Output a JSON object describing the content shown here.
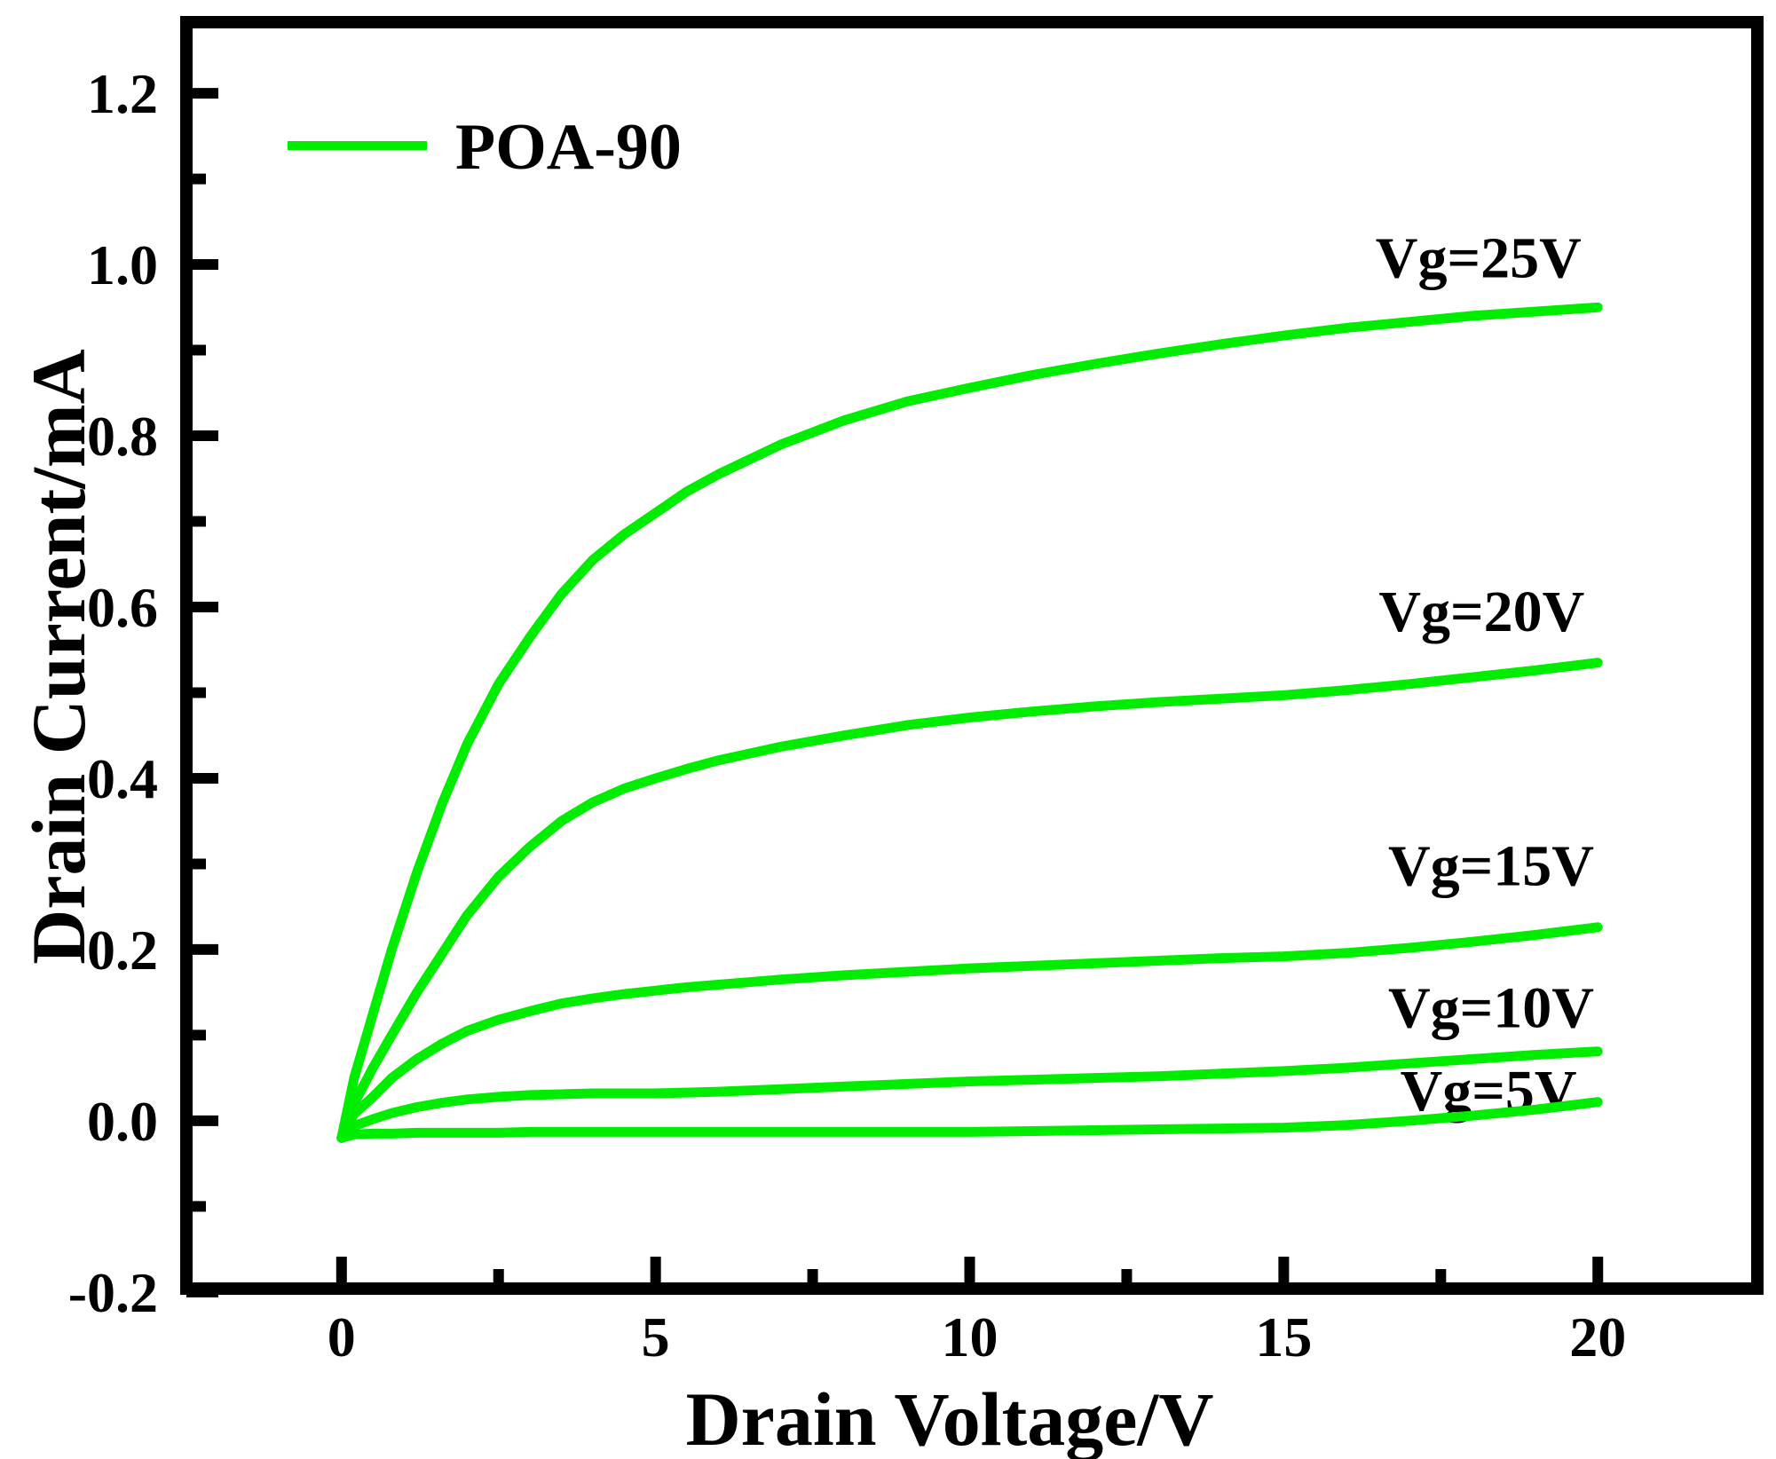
{
  "colors": {
    "curve_green": "#00ED00",
    "axis_black": "#000000",
    "background": "#ffffff"
  },
  "chart_data": {
    "type": "line",
    "title": "",
    "xlabel": "Drain Voltage/V",
    "ylabel": "Drain Current/mA",
    "xlim": [
      -2.47,
      22.54
    ],
    "ylim": [
      -0.196,
      1.283
    ],
    "grid": false,
    "legend": {
      "label": "POA-90",
      "position": "upper-left"
    },
    "line_color": "#00ED00",
    "x_ticks": {
      "values": [
        0,
        5,
        10,
        15,
        20
      ],
      "labels": [
        "0",
        "5",
        "10",
        "15",
        "20"
      ],
      "minor": [
        2.5,
        7.5,
        12.5,
        17.5
      ]
    },
    "y_ticks": {
      "values": [
        1.2,
        1.0,
        0.8,
        0.6,
        0.4,
        0.2,
        0.0,
        -0.2
      ],
      "labels": [
        "1.2",
        "1.0",
        "0.8",
        "0.6",
        "0.4",
        "0.2",
        "0.0",
        "-0.2"
      ],
      "minor": [
        1.1,
        0.9,
        0.7,
        0.5,
        0.3,
        0.1,
        -0.1
      ]
    },
    "x": [
      0,
      0.2,
      0.5,
      0.8,
      1.2,
      1.6,
      2,
      2.5,
      3,
      3.5,
      4,
      4.5,
      5,
      5.5,
      6,
      7,
      8,
      9,
      10,
      11,
      12,
      13,
      14,
      15,
      16,
      17,
      18,
      19,
      20
    ],
    "series": [
      {
        "name": "Vg=25V",
        "gate_voltage_V": 25,
        "annotation": {
          "text": "Vg=25V",
          "x": 18.1,
          "y": 1.007
        },
        "y": [
          -0.02,
          0.05,
          0.125,
          0.2,
          0.29,
          0.37,
          0.44,
          0.51,
          0.565,
          0.615,
          0.655,
          0.685,
          0.71,
          0.735,
          0.755,
          0.79,
          0.818,
          0.84,
          0.856,
          0.871,
          0.884,
          0.896,
          0.907,
          0.917,
          0.926,
          0.933,
          0.94,
          0.945,
          0.95
        ]
      },
      {
        "name": "Vg=20V",
        "gate_voltage_V": 20,
        "annotation": {
          "text": "Vg=20V",
          "x": 18.15,
          "y": 0.594
        },
        "y": [
          -0.02,
          0.02,
          0.062,
          0.1,
          0.15,
          0.195,
          0.24,
          0.285,
          0.32,
          0.35,
          0.372,
          0.388,
          0.4,
          0.411,
          0.421,
          0.437,
          0.45,
          0.462,
          0.471,
          0.478,
          0.484,
          0.489,
          0.493,
          0.497,
          0.503,
          0.51,
          0.518,
          0.526,
          0.535
        ]
      },
      {
        "name": "Vg=15V",
        "gate_voltage_V": 15,
        "annotation": {
          "text": "Vg=15V",
          "x": 18.3,
          "y": 0.297
        },
        "y": [
          -0.02,
          0.008,
          0.028,
          0.05,
          0.072,
          0.09,
          0.105,
          0.118,
          0.128,
          0.137,
          0.143,
          0.148,
          0.152,
          0.156,
          0.159,
          0.165,
          0.17,
          0.174,
          0.178,
          0.181,
          0.184,
          0.187,
          0.19,
          0.192,
          0.196,
          0.202,
          0.209,
          0.217,
          0.226
        ]
      },
      {
        "name": "Vg=10V",
        "gate_voltage_V": 10,
        "annotation": {
          "text": "Vg=10V",
          "x": 18.3,
          "y": 0.131
        },
        "y": [
          -0.02,
          -0.006,
          0.002,
          0.009,
          0.016,
          0.021,
          0.025,
          0.028,
          0.03,
          0.031,
          0.032,
          0.032,
          0.032,
          0.033,
          0.034,
          0.037,
          0.04,
          0.043,
          0.046,
          0.048,
          0.05,
          0.052,
          0.055,
          0.058,
          0.062,
          0.067,
          0.072,
          0.077,
          0.081
        ]
      },
      {
        "name": "Vg=5V",
        "gate_voltage_V": 5,
        "annotation": {
          "text": "Vg=5V",
          "x": 18.26,
          "y": 0.034
        },
        "y": [
          -0.02,
          -0.016,
          -0.015,
          -0.015,
          -0.014,
          -0.014,
          -0.014,
          -0.014,
          -0.013,
          -0.013,
          -0.013,
          -0.013,
          -0.013,
          -0.013,
          -0.013,
          -0.013,
          -0.013,
          -0.013,
          -0.013,
          -0.012,
          -0.011,
          -0.01,
          -0.009,
          -0.008,
          -0.005,
          0.0,
          0.006,
          0.013,
          0.022
        ]
      }
    ]
  }
}
